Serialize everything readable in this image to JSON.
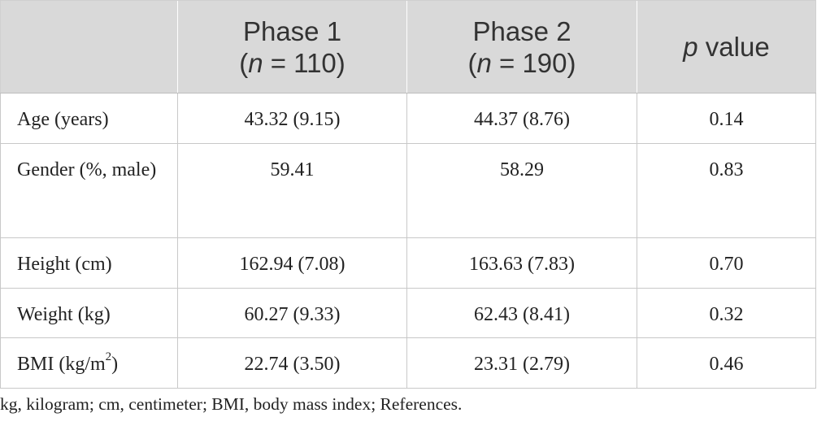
{
  "table": {
    "header": {
      "col1": "",
      "phase1": {
        "title": "Phase 1",
        "n_open": "(",
        "n_var": "n",
        "n_rest": " = 110)"
      },
      "phase2": {
        "title": "Phase 2",
        "n_open": "(",
        "n_var": "n",
        "n_rest": " = 190)"
      },
      "pvalue": {
        "var": "p",
        "rest": " value"
      }
    },
    "rows": [
      {
        "label": "Age (years)",
        "phase1": "43.32 (9.15)",
        "phase2": "44.37 (8.76)",
        "p": "0.14"
      },
      {
        "label": "Gender (%, male)",
        "phase1": "59.41",
        "phase2": "58.29",
        "p": "0.83"
      },
      {
        "label": "Height (cm)",
        "phase1": "162.94 (7.08)",
        "phase2": "163.63 (7.83)",
        "p": "0.70"
      },
      {
        "label": "Weight (kg)",
        "phase1": "60.27 (9.33)",
        "phase2": "62.43 (8.41)",
        "p": "0.32"
      },
      {
        "label_main": "BMI (kg/m",
        "label_sup": "2",
        "label_end": ")",
        "phase1": "22.74 (3.50)",
        "phase2": "23.31 (2.79)",
        "p": "0.46"
      }
    ]
  },
  "footnote": "kg, kilogram; cm, centimeter; BMI, body mass index; References."
}
